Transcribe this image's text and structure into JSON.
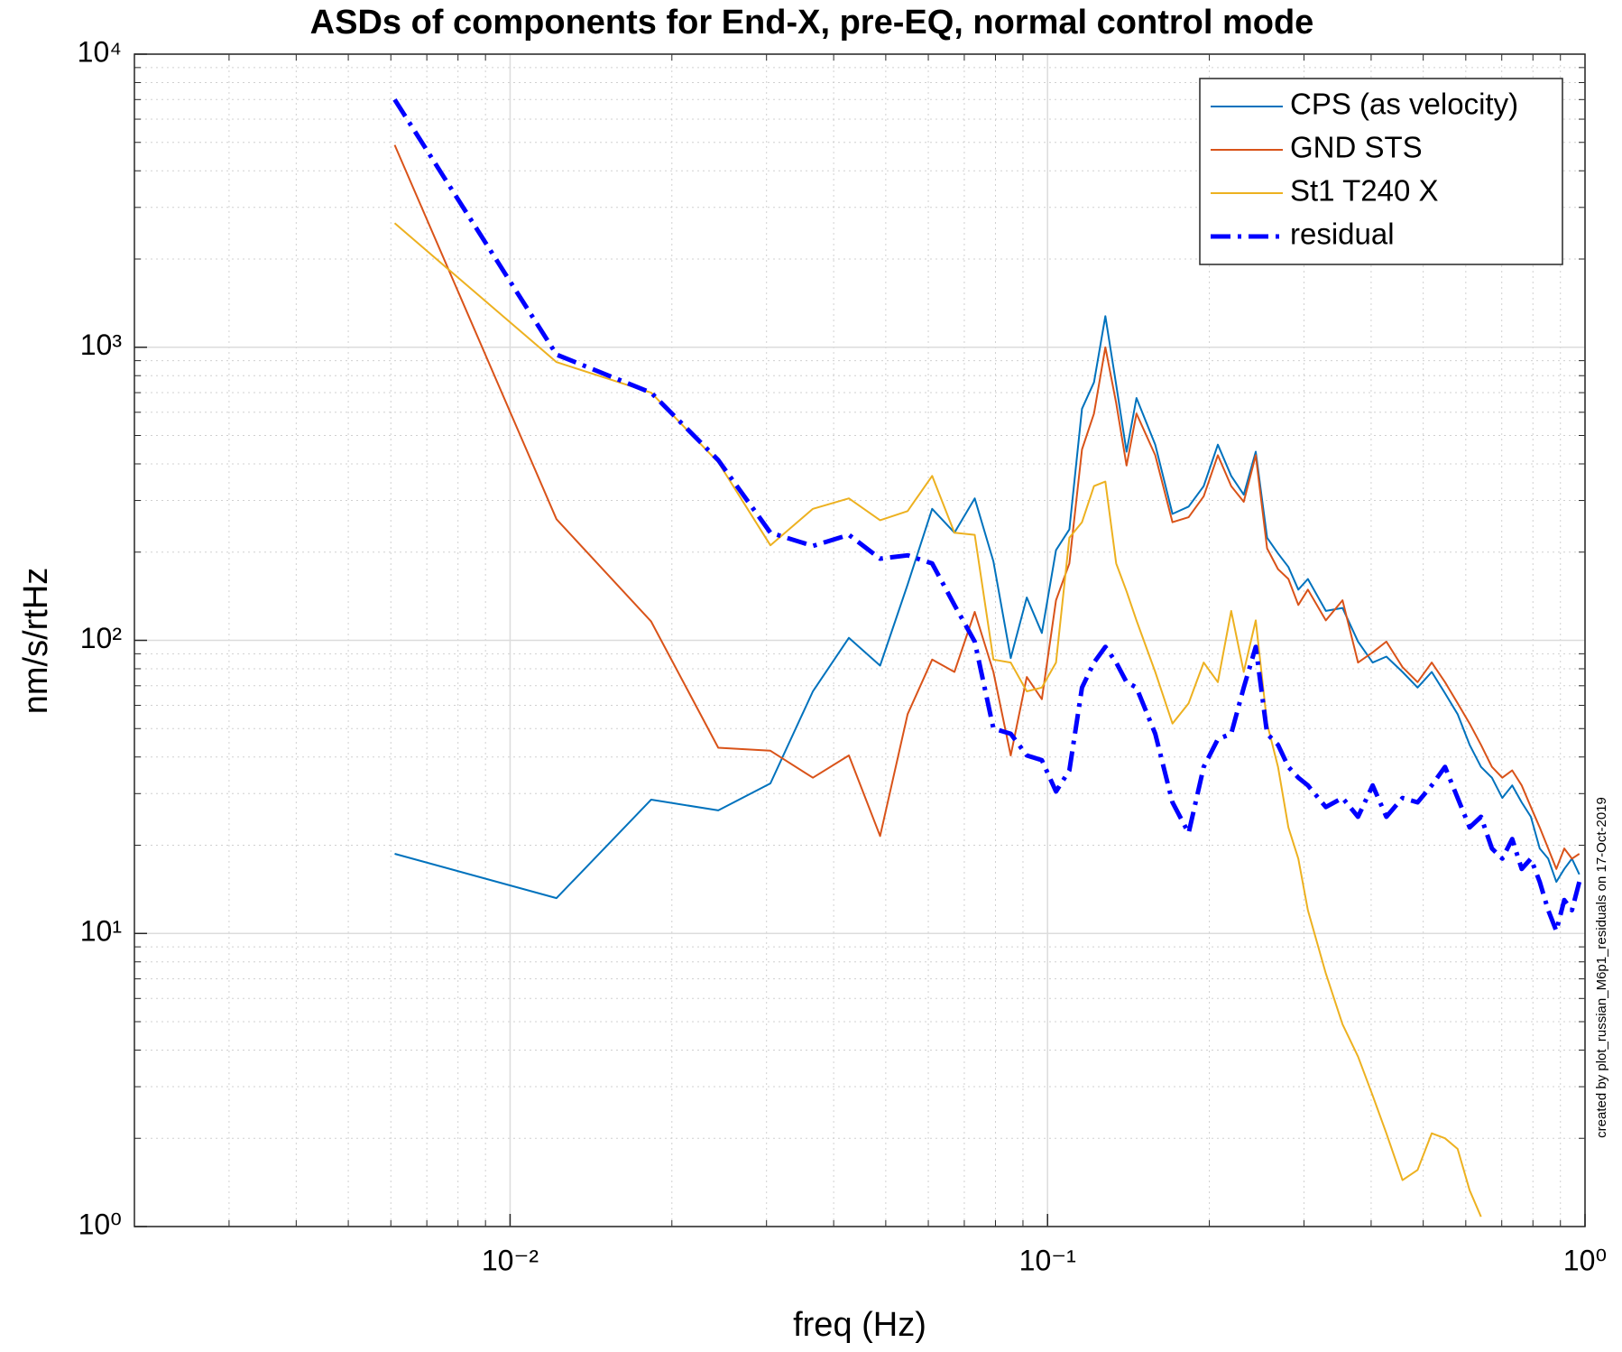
{
  "chart_data": {
    "type": "line",
    "title": "ASDs of components for End-X, pre-EQ, normal control mode",
    "xlabel": "freq (Hz)",
    "ylabel": "nm/s/rtHz",
    "annotation": "created by plot_russian_M6p1_residuals on 17-Oct-2019",
    "xscale": "log",
    "yscale": "log",
    "grid": true,
    "minor_grid": true,
    "legend": "northeast",
    "xlim": [
      0.002,
      1
    ],
    "ylim": [
      1,
      10000
    ],
    "xticks": [
      {
        "value": 0.01,
        "label": "10⁻²"
      },
      {
        "value": 0.1,
        "label": "10⁻¹"
      },
      {
        "value": 1,
        "label": "10⁰"
      }
    ],
    "yticks": [
      {
        "value": 1,
        "label": "10⁰"
      },
      {
        "value": 10,
        "label": "10¹"
      },
      {
        "value": 100,
        "label": "10²"
      },
      {
        "value": 1000,
        "label": "10³"
      },
      {
        "value": 10000,
        "label": "10⁴"
      }
    ],
    "x": [
      0.0061,
      0.0122,
      0.0183,
      0.0244,
      0.0305,
      0.0366,
      0.0427,
      0.0488,
      0.0549,
      0.061,
      0.0671,
      0.0732,
      0.0793,
      0.0854,
      0.0915,
      0.0976,
      0.1037,
      0.1098,
      0.1159,
      0.122,
      0.1281,
      0.1342,
      0.1403,
      0.1464,
      0.1586,
      0.1708,
      0.183,
      0.1952,
      0.2074,
      0.2196,
      0.2318,
      0.244,
      0.2562,
      0.2684,
      0.2806,
      0.2928,
      0.305,
      0.3294,
      0.3538,
      0.3782,
      0.4026,
      0.427,
      0.4575,
      0.488,
      0.5185,
      0.549,
      0.5795,
      0.61,
      0.6405,
      0.671,
      0.7015,
      0.732,
      0.7625,
      0.793,
      0.8235,
      0.854,
      0.8845,
      0.915,
      0.9455,
      0.976
    ],
    "series": [
      {
        "name": "CPS (as velocity)",
        "color": "#0072BD",
        "width": 2,
        "dash": "solid",
        "values": [
          18.7,
          13.2,
          28.6,
          26.3,
          32.5,
          67,
          102,
          82,
          155,
          281,
          233,
          305,
          186,
          87,
          140,
          106,
          203,
          239,
          617,
          759,
          1277,
          745,
          440,
          671,
          465,
          270,
          286,
          336,
          465,
          364,
          314,
          440,
          224,
          198,
          178,
          149,
          162,
          126,
          129,
          99,
          84,
          88,
          78,
          69,
          78,
          66,
          56,
          44,
          37,
          34,
          29,
          32,
          28,
          25,
          19.5,
          18,
          15,
          16.6,
          18,
          15.9
        ]
      },
      {
        "name": "GND STS",
        "color": "#D95319",
        "width": 2,
        "dash": "solid",
        "values": [
          4900,
          259,
          116,
          43,
          42,
          34,
          40.5,
          21.5,
          56,
          86,
          78,
          125,
          78,
          40.5,
          75,
          63,
          137,
          183,
          448,
          594,
          1000,
          645,
          395,
          594,
          428,
          253,
          263,
          310,
          428,
          336,
          297,
          428,
          206,
          175,
          162,
          132,
          149,
          117,
          137,
          84,
          91,
          99,
          81,
          72,
          84,
          72,
          61,
          52,
          44,
          37,
          34,
          36,
          32,
          27,
          23,
          19.5,
          16.6,
          19.5,
          18,
          18.7
        ]
      },
      {
        "name": "St1 T240 X",
        "color": "#EDB120",
        "width": 2,
        "dash": "solid",
        "values": [
          2650,
          890,
          700,
          405,
          211,
          281,
          305,
          257,
          276,
          364,
          233,
          229,
          86,
          84,
          67,
          69,
          84,
          224,
          253,
          336,
          348,
          183,
          147,
          117,
          78,
          52,
          61,
          84,
          72,
          126,
          78,
          117,
          52,
          37,
          23,
          18,
          12,
          7.3,
          4.9,
          3.8,
          2.8,
          2.08,
          1.44,
          1.56,
          2.08,
          2.0,
          1.84,
          1.33,
          1.08,
          null,
          null,
          null,
          null,
          null,
          null,
          null,
          null,
          null,
          null,
          null
        ]
      },
      {
        "name": "residual",
        "color": "#0000FF",
        "width": 5,
        "dash": "dashdot",
        "values": [
          7000,
          944,
          700,
          412,
          233,
          210,
          229,
          190,
          195,
          183,
          132,
          99,
          50,
          48,
          40.5,
          39,
          30.5,
          36,
          69,
          84,
          95,
          84,
          72,
          69,
          48,
          28,
          22,
          37,
          46,
          48,
          69,
          95,
          48,
          44,
          37,
          34,
          32,
          27,
          29,
          25,
          32,
          25,
          29,
          28,
          32,
          37,
          29,
          23,
          25,
          19.5,
          18,
          21,
          16.6,
          18,
          15,
          12,
          10.2,
          13,
          12,
          15
        ]
      }
    ]
  }
}
